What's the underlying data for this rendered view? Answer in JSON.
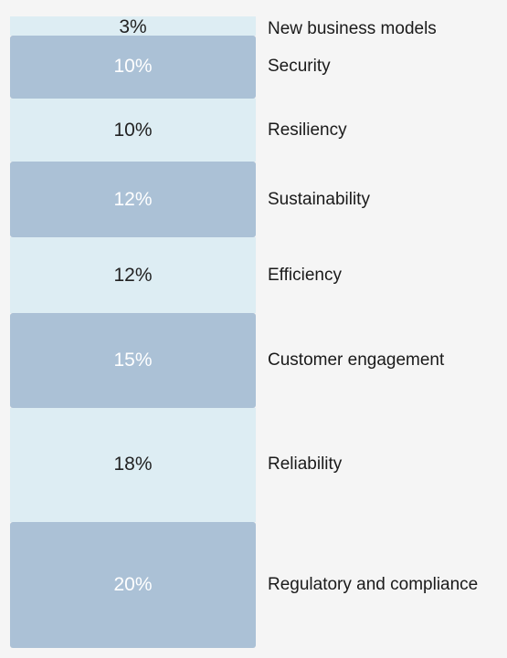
{
  "chart_data": {
    "type": "stacked-bar",
    "orientation": "vertical-stack",
    "unit": "%",
    "colors": {
      "light": "#ddedf3",
      "dark": "#abc1d6",
      "light_text": "#222222",
      "dark_text": "#ffffff"
    },
    "segments": [
      {
        "category": "New business models",
        "value": 3,
        "label": "3%",
        "shade": "light"
      },
      {
        "category": "Security",
        "value": 10,
        "label": "10%",
        "shade": "dark"
      },
      {
        "category": "Resiliency",
        "value": 10,
        "label": "10%",
        "shade": "light"
      },
      {
        "category": "Sustainability",
        "value": 12,
        "label": "12%",
        "shade": "dark"
      },
      {
        "category": "Efficiency",
        "value": 12,
        "label": "12%",
        "shade": "light"
      },
      {
        "category": "Customer engagement",
        "value": 15,
        "label": "15%",
        "shade": "dark"
      },
      {
        "category": "Reliability",
        "value": 18,
        "label": "18%",
        "shade": "light"
      },
      {
        "category": "Regulatory and compliance",
        "value": 20,
        "label": "20%",
        "shade": "dark"
      }
    ]
  }
}
